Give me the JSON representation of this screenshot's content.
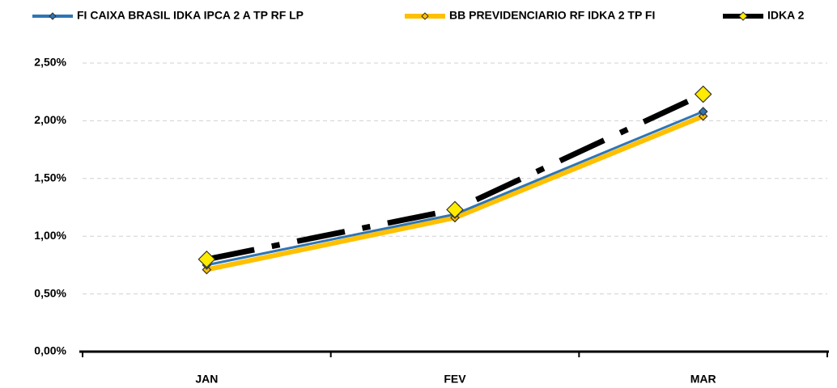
{
  "chart_data": {
    "type": "line",
    "categories": [
      "JAN",
      "FEV",
      "MAR"
    ],
    "series": [
      {
        "name": "FI CAIXA BRASIL IDKA IPCA 2 A TP RF LP",
        "color": "#2e75b6",
        "marker_color": "#2e75b6",
        "line_style": "solid",
        "values": [
          0.75,
          1.19,
          2.08
        ]
      },
      {
        "name": "BB PREVIDENCIARIO RF IDKA 2 TP FI",
        "color": "#ffc000",
        "marker_color": "#ffc000",
        "line_style": "solid",
        "values": [
          0.71,
          1.16,
          2.04
        ]
      },
      {
        "name": "IDKA 2",
        "color": "#000000",
        "marker_color": "#ffeb00",
        "line_style": "dashdot",
        "values": [
          0.8,
          1.23,
          2.23
        ]
      }
    ],
    "ylim": [
      0,
      2.5
    ],
    "yticks": [
      {
        "value": 0,
        "label": "0,00%"
      },
      {
        "value": 0.5,
        "label": "0,50%"
      },
      {
        "value": 1,
        "label": "1,00%"
      },
      {
        "value": 1.5,
        "label": "1,50%"
      },
      {
        "value": 2,
        "label": "2,00%"
      },
      {
        "value": 2.5,
        "label": "2,50%"
      }
    ],
    "grid": true,
    "legend": "top"
  }
}
